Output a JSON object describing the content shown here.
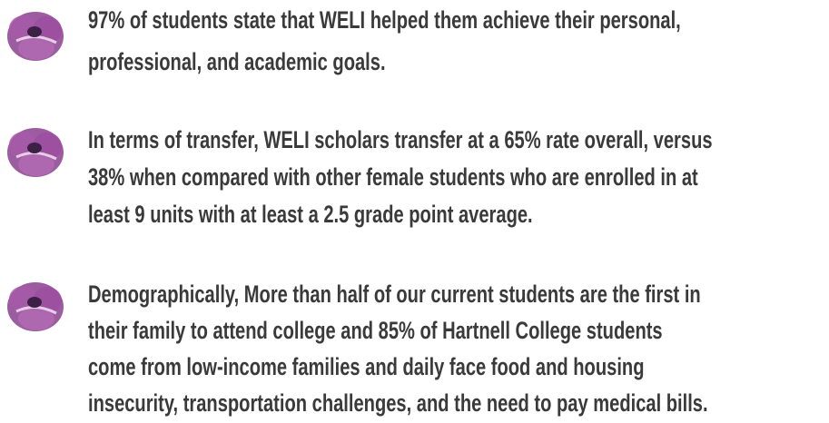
{
  "items": [
    {
      "lines": [
        "97% of students state that WELI helped them achieve their personal,",
        "professional, and academic goals."
      ]
    },
    {
      "lines": [
        "In terms of transfer, WELI scholars transfer at a 65% rate overall, versus",
        "38% when compared with other female students who are enrolled in at",
        "least 9 units with at least a 2.5 grade point average."
      ]
    },
    {
      "lines": [
        "Demographically, More than half of our current students are the first in",
        "their family to attend college and 85% of Hartnell College students",
        "come from low-income families and daily face food and housing",
        "insecurity, transportation challenges, and the need to pay medical bills."
      ]
    }
  ]
}
